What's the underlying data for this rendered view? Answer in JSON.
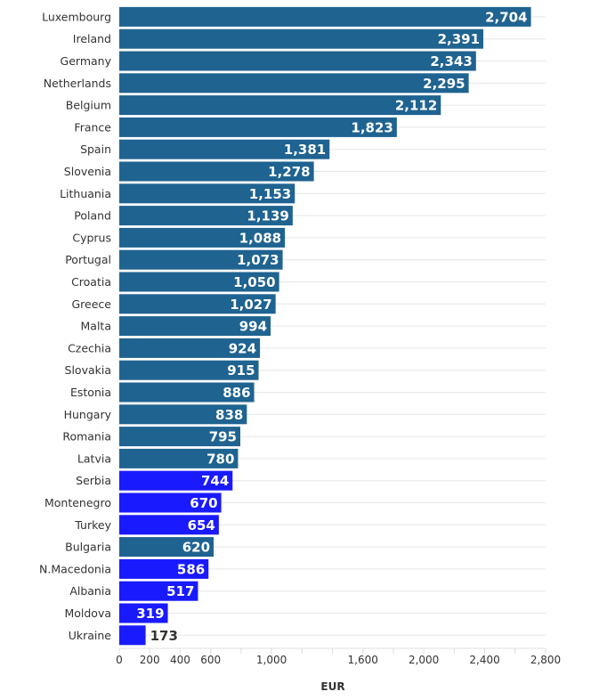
{
  "chart_data": {
    "type": "bar",
    "orientation": "horizontal",
    "title": "",
    "xlabel": "EUR",
    "ylabel": "",
    "xlim": [
      0,
      2800
    ],
    "grid": true,
    "legend": "none",
    "x_ticks": [
      0,
      200,
      400,
      600,
      800,
      1000,
      1200,
      1400,
      1600,
      1800,
      2000,
      2200,
      2400,
      2600,
      2800
    ],
    "x_tick_labels": [
      {
        "value": 0,
        "label": "0"
      },
      {
        "value": 200,
        "label": "200"
      },
      {
        "value": 400,
        "label": "400"
      },
      {
        "value": 600,
        "label": "600"
      },
      {
        "value": 1000,
        "label": "1,000"
      },
      {
        "value": 1600,
        "label": "1,600"
      },
      {
        "value": 2000,
        "label": "2,000"
      },
      {
        "value": 2400,
        "label": "2,400"
      },
      {
        "value": 2800,
        "label": "2,800"
      }
    ],
    "colors": {
      "eu_member": "#1f6391",
      "highlight": "#1a1aff"
    },
    "categories": [
      "Luxembourg",
      "Ireland",
      "Germany",
      "Netherlands",
      "Belgium",
      "France",
      "Spain",
      "Slovenia",
      "Lithuania",
      "Poland",
      "Cyprus",
      "Portugal",
      "Croatia",
      "Greece",
      "Malta",
      "Czechia",
      "Slovakia",
      "Estonia",
      "Hungary",
      "Romania",
      "Latvia",
      "Serbia",
      "Montenegro",
      "Turkey",
      "Bulgaria",
      "N.Macedonia",
      "Albania",
      "Moldova",
      "Ukraine"
    ],
    "values": [
      2704,
      2391,
      2343,
      2295,
      2112,
      1823,
      1381,
      1278,
      1153,
      1139,
      1088,
      1073,
      1050,
      1027,
      994,
      924,
      915,
      886,
      838,
      795,
      780,
      744,
      670,
      654,
      620,
      586,
      517,
      319,
      173
    ],
    "value_labels": [
      "2,704",
      "2,391",
      "2,343",
      "2,295",
      "2,112",
      "1,823",
      "1,381",
      "1,278",
      "1,153",
      "1,139",
      "1,088",
      "1,073",
      "1,050",
      "1,027",
      "994",
      "924",
      "915",
      "886",
      "838",
      "795",
      "780",
      "744",
      "670",
      "654",
      "620",
      "586",
      "517",
      "319",
      "173"
    ],
    "bar_group": [
      "eu_member",
      "eu_member",
      "eu_member",
      "eu_member",
      "eu_member",
      "eu_member",
      "eu_member",
      "eu_member",
      "eu_member",
      "eu_member",
      "eu_member",
      "eu_member",
      "eu_member",
      "eu_member",
      "eu_member",
      "eu_member",
      "eu_member",
      "eu_member",
      "eu_member",
      "eu_member",
      "eu_member",
      "highlight",
      "highlight",
      "highlight",
      "eu_member",
      "highlight",
      "highlight",
      "highlight",
      "highlight"
    ]
  }
}
